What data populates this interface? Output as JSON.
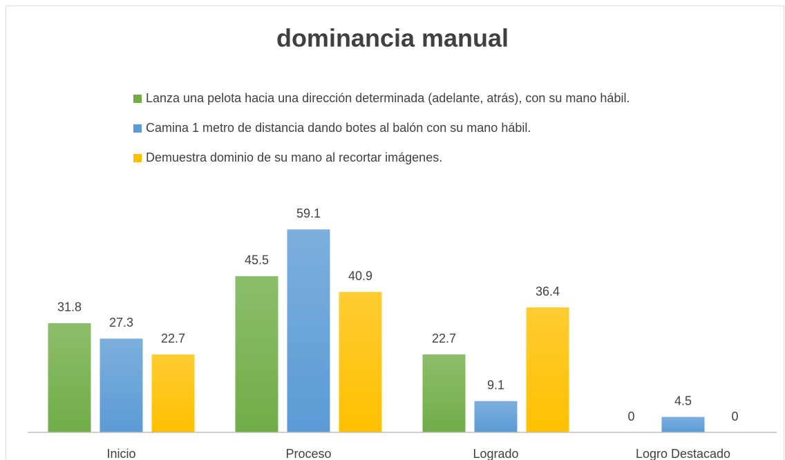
{
  "chart_data": {
    "type": "bar",
    "title": "dominancia manual",
    "categories": [
      "Inicio",
      "Proceso",
      "Logrado",
      "Logro Destacado"
    ],
    "series": [
      {
        "name": "Lanza una pelota hacia una dirección determinada (adelante, atrás), con su mano hábil.",
        "color": "#70ad47",
        "values": [
          31.8,
          45.5,
          22.7,
          0
        ]
      },
      {
        "name": "Camina 1 metro de distancia dando botes al balón con su mano hábil.",
        "color": "#5b9bd5",
        "values": [
          27.3,
          59.1,
          9.1,
          4.5
        ]
      },
      {
        "name": "Demuestra dominio de su mano al recortar imágenes.",
        "color": "#ffc000",
        "values": [
          22.7,
          40.9,
          36.4,
          0
        ]
      }
    ],
    "ylim": [
      0,
      70
    ],
    "legend": "top"
  }
}
